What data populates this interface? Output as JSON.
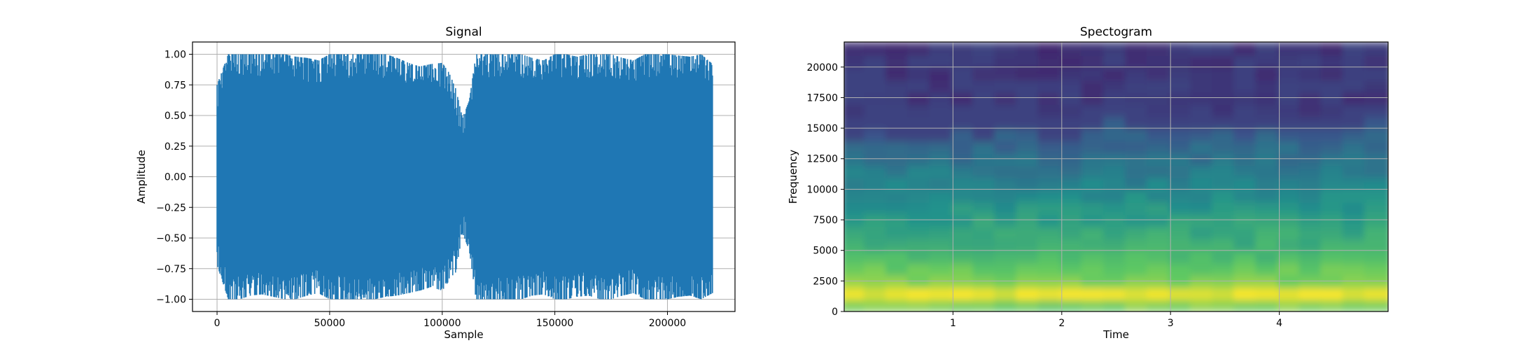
{
  "chart_data": [
    {
      "type": "line",
      "title": "Signal",
      "xlabel": "Sample",
      "ylabel": "Amplitude",
      "xlim": [
        -10900,
        230000
      ],
      "ylim": [
        -1.1,
        1.1
      ],
      "x_ticks": [
        0,
        50000,
        100000,
        150000,
        200000
      ],
      "y_ticks": [
        -1.0,
        -0.75,
        -0.5,
        -0.25,
        0.0,
        0.25,
        0.5,
        0.75,
        1.0
      ],
      "x_tick_labels": [
        "0",
        "50000",
        "100000",
        "150000",
        "200000"
      ],
      "y_tick_labels": [
        "−1.00",
        "−0.75",
        "−0.50",
        "−0.25",
        "0.00",
        "0.25",
        "0.50",
        "0.75",
        "1.00"
      ],
      "grid": true,
      "color": "#1f77b4",
      "series": [
        {
          "x": [
            0,
            5000,
            10000,
            15000,
            20000,
            25000,
            30000,
            35000,
            40000,
            45000,
            50000,
            55000,
            60000,
            65000,
            70000,
            75000,
            80000,
            85000,
            90000,
            95000,
            100000,
            103000,
            106000,
            109000,
            112000,
            115000,
            120000,
            125000,
            130000,
            135000,
            140000,
            145000,
            150000,
            155000,
            160000,
            165000,
            170000,
            175000,
            180000,
            185000,
            190000,
            195000,
            200000,
            205000,
            210000,
            215000,
            220000
          ],
          "upper": [
            0.75,
            1.0,
            1.0,
            1.0,
            1.0,
            1.0,
            1.0,
            0.98,
            0.97,
            0.95,
            1.0,
            1.0,
            1.0,
            1.0,
            1.0,
            1.0,
            0.97,
            0.93,
            0.9,
            0.92,
            0.93,
            0.85,
            0.72,
            0.48,
            0.62,
            1.0,
            1.0,
            1.0,
            1.0,
            1.0,
            0.97,
            0.95,
            1.0,
            1.0,
            0.98,
            1.0,
            1.0,
            1.0,
            0.97,
            0.95,
            1.0,
            1.0,
            1.0,
            0.99,
            0.98,
            1.0,
            0.92
          ],
          "lower": [
            -0.72,
            -1.0,
            -1.0,
            -0.97,
            -0.96,
            -0.98,
            -1.0,
            -1.0,
            -0.97,
            -0.95,
            -1.0,
            -1.0,
            -1.0,
            -1.0,
            -1.0,
            -0.98,
            -0.97,
            -0.95,
            -0.93,
            -0.9,
            -0.93,
            -0.85,
            -0.78,
            -0.46,
            -0.6,
            -1.0,
            -1.0,
            -1.0,
            -1.0,
            -1.0,
            -0.97,
            -0.96,
            -1.0,
            -1.0,
            -0.98,
            -0.97,
            -1.0,
            -1.0,
            -0.97,
            -0.95,
            -1.0,
            -1.0,
            -1.0,
            -0.98,
            -0.97,
            -1.0,
            -0.95
          ]
        }
      ]
    },
    {
      "type": "heatmap",
      "title": "Spectogram",
      "xlabel": "Time",
      "ylabel": "Frequency",
      "xlim": [
        0,
        5.0
      ],
      "ylim": [
        0,
        22050
      ],
      "x_ticks": [
        1,
        2,
        3,
        4
      ],
      "y_ticks": [
        0,
        2500,
        5000,
        7500,
        10000,
        12500,
        15000,
        17500,
        20000
      ],
      "x_tick_labels": [
        "1",
        "2",
        "3",
        "4"
      ],
      "y_tick_labels": [
        "0",
        "2500",
        "5000",
        "7500",
        "10000",
        "12500",
        "15000",
        "17500",
        "20000"
      ],
      "grid": true,
      "colormap": "viridis",
      "time": [
        0.1,
        0.3,
        0.5,
        0.7,
        0.9,
        1.1,
        1.3,
        1.5,
        1.7,
        1.9,
        2.1,
        2.3,
        2.5,
        2.7,
        2.9,
        3.1,
        3.3,
        3.5,
        3.7,
        3.9,
        4.1,
        4.3,
        4.5,
        4.7,
        4.9
      ],
      "frequency": [
        500,
        1500,
        2500,
        3500,
        4500,
        5500,
        6500,
        7500,
        8500,
        9500,
        10500,
        11500,
        12500,
        13500,
        14500,
        15500,
        16500,
        17500,
        18500,
        19500,
        20500,
        21500
      ],
      "intensity_profile": [
        0.78,
        0.98,
        0.8,
        0.75,
        0.68,
        0.63,
        0.6,
        0.56,
        0.52,
        0.48,
        0.44,
        0.41,
        0.37,
        0.34,
        0.3,
        0.27,
        0.2,
        0.18,
        0.18,
        0.17,
        0.17,
        0.17
      ],
      "cutoff_frequency": [
        14000,
        15000,
        14000,
        13500,
        14000,
        14500,
        14000,
        14500,
        15000,
        14000,
        14200,
        14500,
        15500,
        15000,
        14500,
        15000,
        15200,
        15000,
        15000,
        15000,
        15000,
        15200,
        15300,
        15000,
        15500
      ]
    }
  ]
}
